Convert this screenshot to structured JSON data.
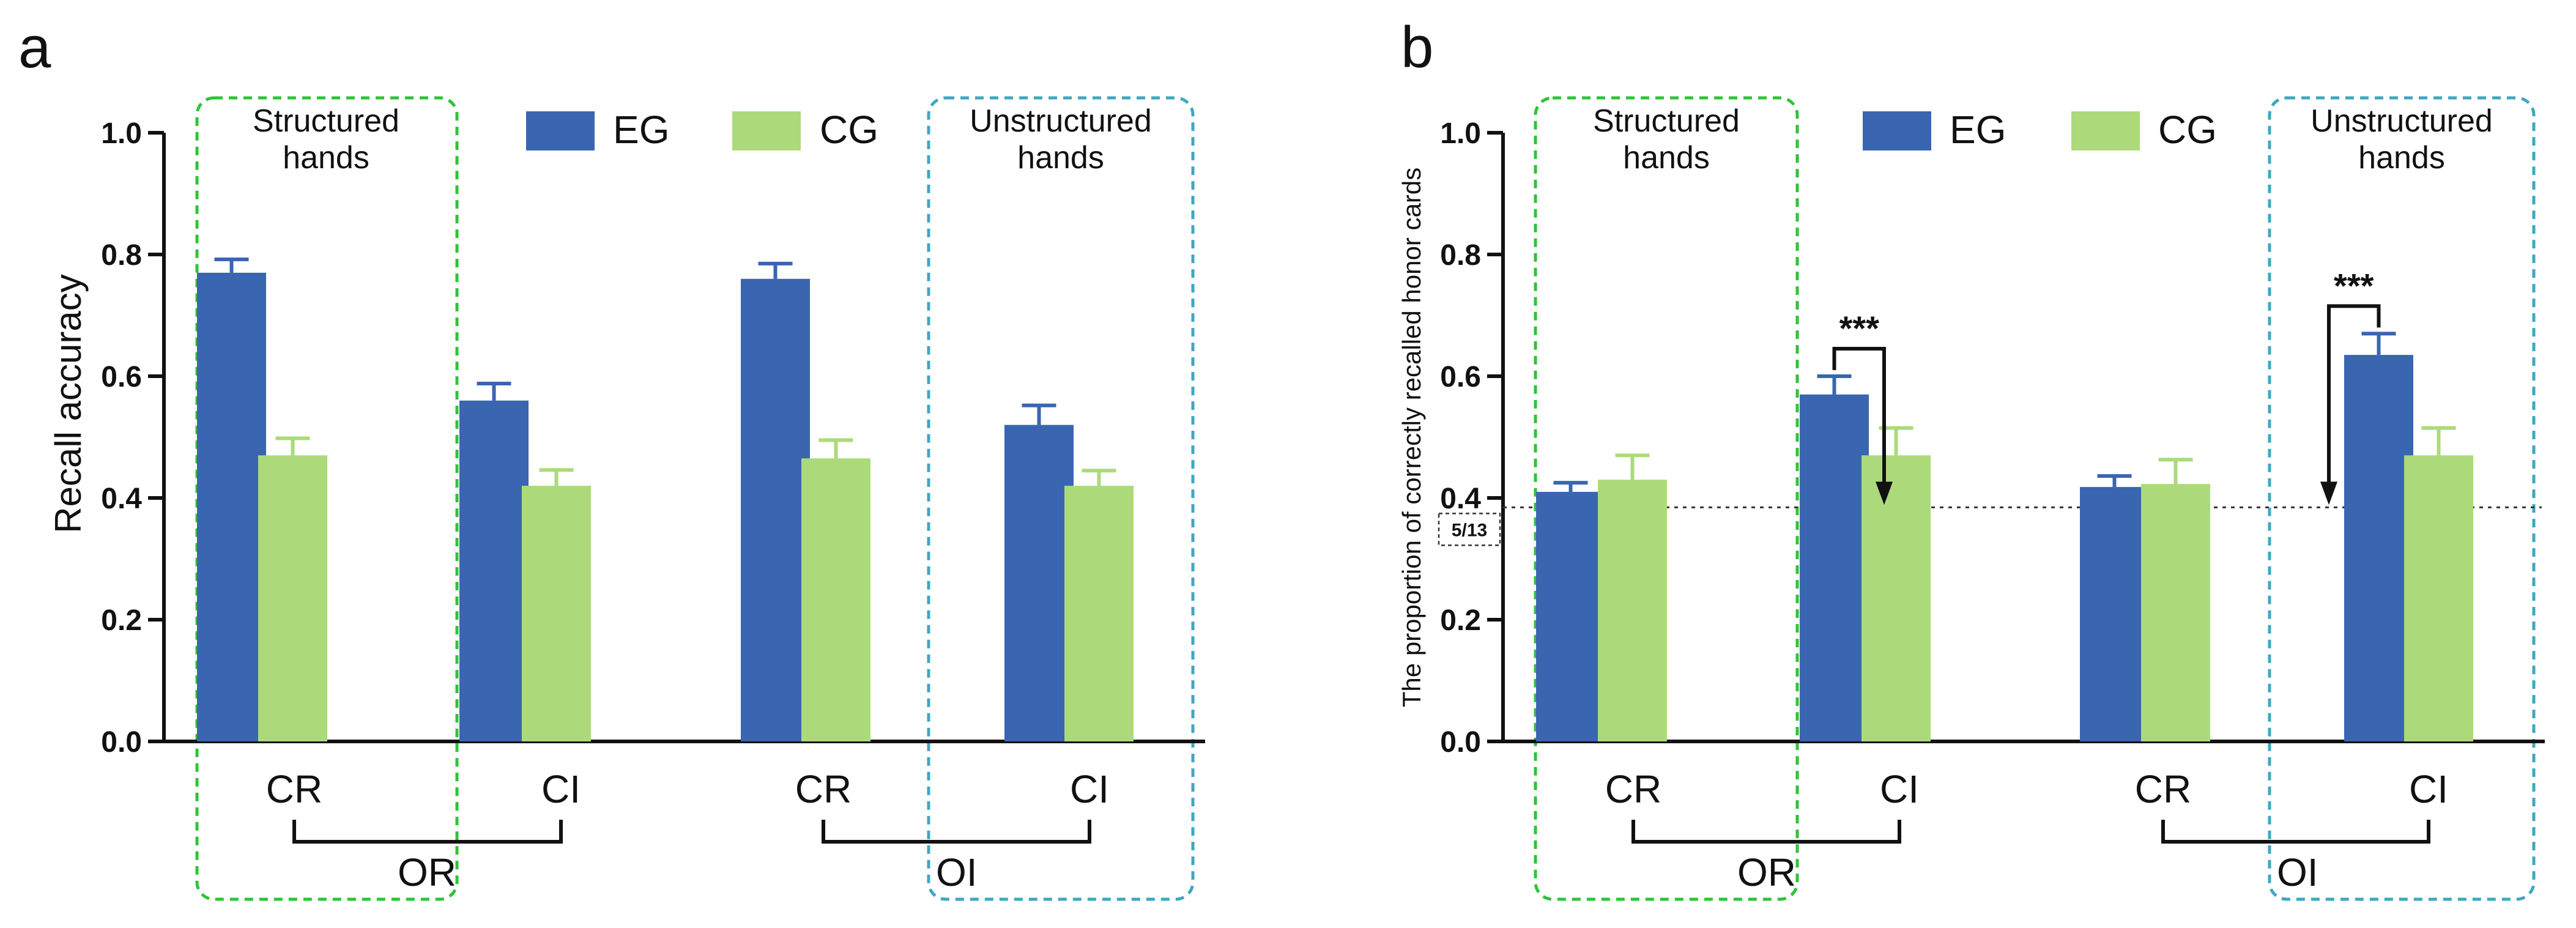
{
  "colors": {
    "EG": "#3a65b0",
    "CG": "#acda7b",
    "structured_box": "#2ec436",
    "unstructured_box": "#3fa7c2"
  },
  "chart_data": [
    {
      "panel": "a",
      "type": "bar",
      "ylabel": "Recall accuracy",
      "ylim": [
        0,
        1.0
      ],
      "yticks": [
        "0.0",
        "0.2",
        "0.4",
        "0.6",
        "0.8",
        "1.0"
      ],
      "categories": [
        "CR",
        "CI",
        "CR",
        "CI"
      ],
      "groups": [
        "OR",
        "OI"
      ],
      "series": [
        {
          "name": "EG",
          "values": [
            0.77,
            0.56,
            0.76,
            0.52
          ],
          "errors": [
            0.022,
            0.028,
            0.025,
            0.032
          ]
        },
        {
          "name": "CG",
          "values": [
            0.47,
            0.42,
            0.465,
            0.42
          ],
          "errors": [
            0.028,
            0.026,
            0.03,
            0.025
          ]
        }
      ],
      "legend": [
        "EG",
        "CG"
      ],
      "boxes": [
        {
          "label_line1": "Structured",
          "label_line2": "hands"
        },
        {
          "label_line1": "Unstructured",
          "label_line2": "hands"
        }
      ]
    },
    {
      "panel": "b",
      "type": "bar",
      "ylabel": "The proportion of correctly recalled honor cards",
      "ylim": [
        0,
        1.0
      ],
      "yticks": [
        "0.0",
        "0.2",
        "0.4",
        "0.6",
        "0.8",
        "1.0"
      ],
      "categories": [
        "CR",
        "CI",
        "CR",
        "CI"
      ],
      "groups": [
        "OR",
        "OI"
      ],
      "series": [
        {
          "name": "EG",
          "values": [
            0.41,
            0.57,
            0.418,
            0.635
          ],
          "errors": [
            0.015,
            0.03,
            0.018,
            0.035
          ]
        },
        {
          "name": "CG",
          "values": [
            0.43,
            0.47,
            0.423,
            0.47
          ],
          "errors": [
            0.04,
            0.045,
            0.04,
            0.045
          ]
        }
      ],
      "legend": [
        "EG",
        "CG"
      ],
      "reference_line": {
        "value": 0.3846,
        "label": "5/13"
      },
      "annotations": [
        {
          "text": "***",
          "category_index": 1
        },
        {
          "text": "***",
          "category_index": 3
        }
      ],
      "boxes": [
        {
          "label_line1": "Structured",
          "label_line2": "hands"
        },
        {
          "label_line1": "Unstructured",
          "label_line2": "hands"
        }
      ]
    }
  ]
}
